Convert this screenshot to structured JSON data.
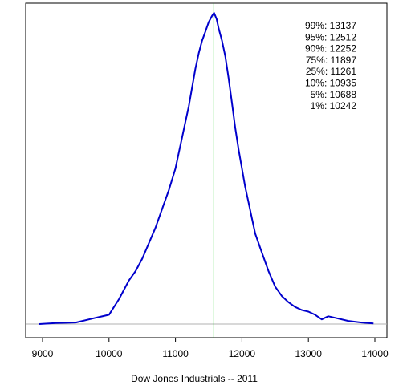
{
  "chart_data": {
    "type": "line",
    "title": "",
    "xlabel": "Dow Jones Industrials -- 2011",
    "ylabel": "",
    "xlim": [
      8800,
      14200
    ],
    "ylim": [
      0,
      1
    ],
    "xticks": [
      "9000",
      "10000",
      "11000",
      "12000",
      "13000",
      "14000"
    ],
    "baseline": 0,
    "reference_line": {
      "x": 11577,
      "color": "#00cc00"
    },
    "series": [
      {
        "color": "#0000cc",
        "x": [
          8950,
          9200,
          9500,
          9800,
          10000,
          10060,
          10150,
          10250,
          10300,
          10400,
          10500,
          10600,
          10700,
          10800,
          10900,
          11000,
          11050,
          11100,
          11150,
          11200,
          11250,
          11300,
          11350,
          11400,
          11450,
          11500,
          11550,
          11580,
          11620,
          11650,
          11700,
          11750,
          11800,
          11850,
          11900,
          11950,
          12000,
          12050,
          12100,
          12150,
          12200,
          12300,
          12400,
          12500,
          12600,
          12700,
          12800,
          12900,
          13000,
          13100,
          13200,
          13250,
          13300,
          13400,
          13600,
          13800,
          13980
        ],
        "y": [
          0.0,
          0.003,
          0.005,
          0.02,
          0.03,
          0.05,
          0.08,
          0.12,
          0.14,
          0.17,
          0.21,
          0.26,
          0.31,
          0.37,
          0.43,
          0.5,
          0.55,
          0.6,
          0.65,
          0.7,
          0.76,
          0.82,
          0.87,
          0.91,
          0.94,
          0.97,
          0.99,
          1.0,
          0.98,
          0.95,
          0.91,
          0.86,
          0.79,
          0.71,
          0.63,
          0.56,
          0.5,
          0.44,
          0.39,
          0.34,
          0.29,
          0.23,
          0.17,
          0.12,
          0.09,
          0.07,
          0.055,
          0.045,
          0.04,
          0.03,
          0.015,
          0.02,
          0.025,
          0.02,
          0.01,
          0.005,
          0.002
        ]
      }
    ],
    "annotations": [
      "99%: 13137",
      "95%: 12512",
      "90%: 12252",
      "75%: 11897",
      "25%: 11261",
      "10%: 10935",
      "5%: 10688",
      "1%: 10242"
    ],
    "grid": false
  },
  "colors": {
    "curve": "#0000cc",
    "reference_line": "#00cc00",
    "baseline": "#b0b0b0",
    "frame": "#000000"
  }
}
